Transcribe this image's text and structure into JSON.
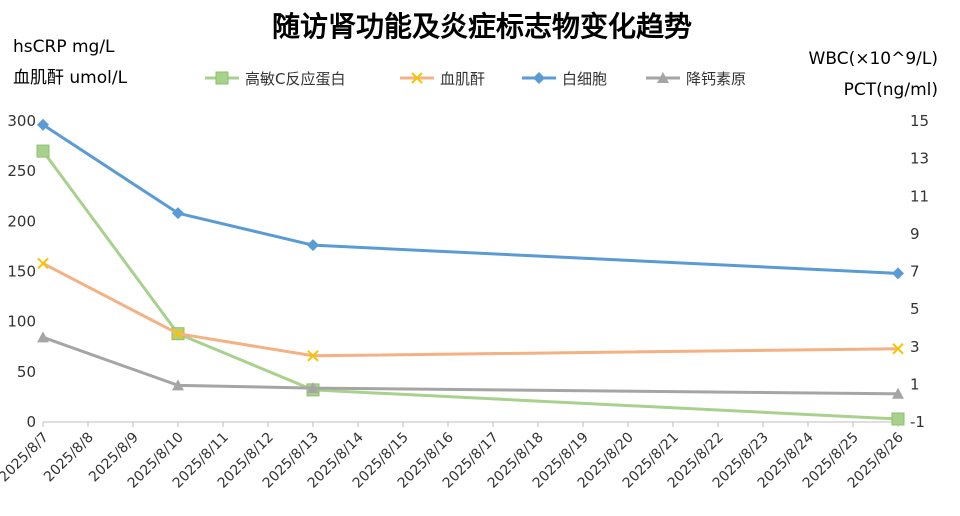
{
  "chart_data": {
    "type": "line",
    "title": "随访肾功能及炎症标志物变化趋势",
    "left_axis_labels": [
      "hsCRP mg/L",
      "血肌酐 umol/L"
    ],
    "right_axis_labels": [
      "WBC(×10^9/L)",
      "PCT(ng/ml)"
    ],
    "ylim_left": [
      0,
      300
    ],
    "yticks_left": [
      "0",
      "50",
      "100",
      "150",
      "200",
      "250",
      "300"
    ],
    "ylim_right": [
      -1,
      15
    ],
    "yticks_right": [
      "-1",
      "1",
      "3",
      "5",
      "7",
      "9",
      "11",
      "13",
      "15"
    ],
    "x_categories": [
      "2025/8/7",
      "2025/8/8",
      "2025/8/9",
      "2025/8/10",
      "2025/8/11",
      "2025/8/12",
      "2025/8/13",
      "2025/8/14",
      "2025/8/15",
      "2025/8/16",
      "2025/8/17",
      "2025/8/18",
      "2025/8/19",
      "2025/8/20",
      "2025/8/21",
      "2025/8/22",
      "2025/8/23",
      "2025/8/24",
      "2025/8/25",
      "2025/8/26"
    ],
    "legend_position": "top",
    "grid": false,
    "series": [
      {
        "name": "高敏C反应蛋白",
        "axis": "left",
        "color": "#a9d18e",
        "marker": "square",
        "x": [
          "2025/8/7",
          "2025/8/10",
          "2025/8/13",
          "2025/8/26"
        ],
        "values": [
          270,
          88,
          32,
          3
        ]
      },
      {
        "name": "血肌酐",
        "axis": "left",
        "color": "#f4b183",
        "marker": "x",
        "x": [
          "2025/8/7",
          "2025/8/10",
          "2025/8/13",
          "2025/8/26"
        ],
        "values": [
          158,
          88,
          66,
          73
        ]
      },
      {
        "name": "白细胞",
        "axis": "right",
        "color": "#5b9bd5",
        "marker": "diamond",
        "x": [
          "2025/8/7",
          "2025/8/10",
          "2025/8/13",
          "2025/8/26"
        ],
        "values": [
          14.8,
          10.1,
          8.4,
          6.9
        ]
      },
      {
        "name": "降钙素原",
        "axis": "right",
        "color": "#a5a5a5",
        "marker": "triangle",
        "x": [
          "2025/8/7",
          "2025/8/10",
          "2025/8/13",
          "2025/8/26"
        ],
        "values": [
          3.5,
          0.95,
          0.8,
          0.5
        ]
      }
    ]
  }
}
